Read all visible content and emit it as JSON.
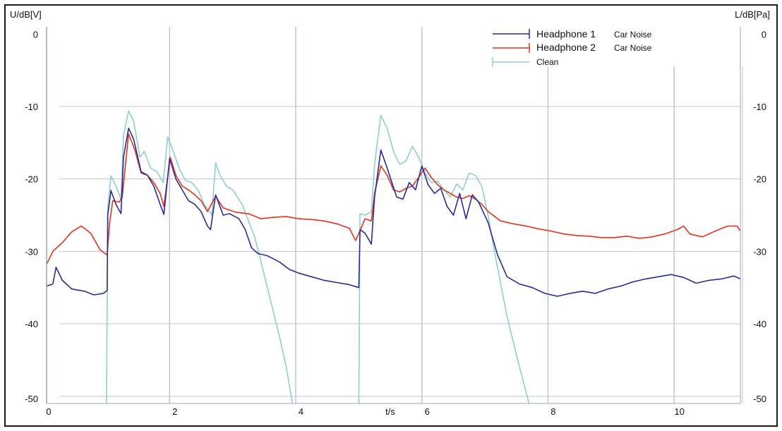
{
  "chart_data": {
    "type": "line",
    "title": "",
    "ylabel_left": "U/dB[V]",
    "ylabel_right": "L/dB[Pa]",
    "xlabel": "t/s",
    "xlim": [
      0,
      11
    ],
    "ylim": [
      -51,
      1
    ],
    "x_ticks": [
      "0",
      "2",
      "4",
      "6",
      "8",
      "10"
    ],
    "y_ticks_left": [
      "0",
      "-10",
      "-20",
      "-30",
      "-40",
      "-50"
    ],
    "y_ticks_right": [
      "0",
      "-10",
      "-20",
      "-30",
      "-40",
      "-50"
    ],
    "grid": true,
    "legend": "top-right",
    "series": [
      {
        "name": "Headphone 1",
        "name_suffix": "Car Noise",
        "color": "#2a2a9c",
        "points": [
          [
            0,
            -34.8
          ],
          [
            0.1,
            -34.5
          ],
          [
            0.15,
            -32.2
          ],
          [
            0.25,
            -34
          ],
          [
            0.4,
            -35.2
          ],
          [
            0.6,
            -35.5
          ],
          [
            0.75,
            -36
          ],
          [
            0.9,
            -35.8
          ],
          [
            0.96,
            -35.4
          ],
          [
            0.97,
            -25
          ],
          [
            1.02,
            -21.6
          ],
          [
            1.1,
            -23.5
          ],
          [
            1.18,
            -24.8
          ],
          [
            1.22,
            -17
          ],
          [
            1.3,
            -13
          ],
          [
            1.38,
            -14.5
          ],
          [
            1.5,
            -19
          ],
          [
            1.6,
            -19.5
          ],
          [
            1.7,
            -21
          ],
          [
            1.8,
            -23.5
          ],
          [
            1.86,
            -24.9
          ],
          [
            1.95,
            -17.2
          ],
          [
            2.05,
            -20
          ],
          [
            2.15,
            -21.5
          ],
          [
            2.25,
            -23
          ],
          [
            2.35,
            -23.5
          ],
          [
            2.45,
            -24.5
          ],
          [
            2.55,
            -26.5
          ],
          [
            2.6,
            -27
          ],
          [
            2.68,
            -22.2
          ],
          [
            2.8,
            -25
          ],
          [
            2.9,
            -24.8
          ],
          [
            3.05,
            -25.5
          ],
          [
            3.15,
            -27
          ],
          [
            3.25,
            -29.5
          ],
          [
            3.35,
            -30.3
          ],
          [
            3.5,
            -30.6
          ],
          [
            3.7,
            -31.5
          ],
          [
            3.85,
            -32.5
          ],
          [
            4.0,
            -33
          ],
          [
            4.2,
            -33.5
          ],
          [
            4.4,
            -34
          ],
          [
            4.6,
            -34.3
          ],
          [
            4.8,
            -34.6
          ],
          [
            4.95,
            -35
          ],
          [
            4.97,
            -27
          ],
          [
            5.05,
            -27.5
          ],
          [
            5.15,
            -29
          ],
          [
            5.2,
            -22.5
          ],
          [
            5.3,
            -16
          ],
          [
            5.4,
            -18.5
          ],
          [
            5.55,
            -22.5
          ],
          [
            5.65,
            -22.8
          ],
          [
            5.75,
            -20.5
          ],
          [
            5.85,
            -21.5
          ],
          [
            5.95,
            -18.2
          ],
          [
            6.05,
            -20.8
          ],
          [
            6.15,
            -22
          ],
          [
            6.25,
            -21.3
          ],
          [
            6.35,
            -23.8
          ],
          [
            6.45,
            -25
          ],
          [
            6.55,
            -22
          ],
          [
            6.65,
            -25.5
          ],
          [
            6.75,
            -22.2
          ],
          [
            6.85,
            -23.2
          ],
          [
            7.0,
            -26
          ],
          [
            7.15,
            -30.5
          ],
          [
            7.3,
            -33.5
          ],
          [
            7.5,
            -34.5
          ],
          [
            7.7,
            -35
          ],
          [
            7.9,
            -35.8
          ],
          [
            8.1,
            -36.2
          ],
          [
            8.3,
            -35.8
          ],
          [
            8.5,
            -35.5
          ],
          [
            8.7,
            -35.8
          ],
          [
            8.9,
            -35.2
          ],
          [
            9.1,
            -34.8
          ],
          [
            9.3,
            -34.2
          ],
          [
            9.5,
            -33.8
          ],
          [
            9.7,
            -33.5
          ],
          [
            9.9,
            -33.2
          ],
          [
            10.1,
            -33.6
          ],
          [
            10.3,
            -34.4
          ],
          [
            10.5,
            -34
          ],
          [
            10.7,
            -33.8
          ],
          [
            10.9,
            -33.4
          ],
          [
            11.0,
            -33.8
          ]
        ]
      },
      {
        "name": "Headphone 2",
        "name_suffix": "Car Noise",
        "color": "#e4321b",
        "points": [
          [
            0,
            -31.8
          ],
          [
            0.1,
            -30
          ],
          [
            0.25,
            -28.8
          ],
          [
            0.4,
            -27.3
          ],
          [
            0.55,
            -26.5
          ],
          [
            0.7,
            -27.5
          ],
          [
            0.85,
            -29.8
          ],
          [
            0.96,
            -30.5
          ],
          [
            1.0,
            -26
          ],
          [
            1.05,
            -23
          ],
          [
            1.15,
            -23.2
          ],
          [
            1.2,
            -22.5
          ],
          [
            1.3,
            -13.8
          ],
          [
            1.4,
            -16
          ],
          [
            1.5,
            -19.2
          ],
          [
            1.6,
            -19.5
          ],
          [
            1.7,
            -20.5
          ],
          [
            1.8,
            -22
          ],
          [
            1.86,
            -23.8
          ],
          [
            1.96,
            -17
          ],
          [
            2.05,
            -19.5
          ],
          [
            2.15,
            -21
          ],
          [
            2.25,
            -21.5
          ],
          [
            2.35,
            -22.2
          ],
          [
            2.45,
            -23
          ],
          [
            2.55,
            -24.5
          ],
          [
            2.68,
            -22.4
          ],
          [
            2.8,
            -24
          ],
          [
            3.0,
            -24.6
          ],
          [
            3.2,
            -24.8
          ],
          [
            3.4,
            -25.5
          ],
          [
            3.6,
            -25.3
          ],
          [
            3.8,
            -25.2
          ],
          [
            4.0,
            -25.5
          ],
          [
            4.2,
            -25.6
          ],
          [
            4.4,
            -25.8
          ],
          [
            4.6,
            -26.2
          ],
          [
            4.8,
            -26.8
          ],
          [
            4.9,
            -28.5
          ],
          [
            4.95,
            -27.5
          ],
          [
            5.05,
            -25.5
          ],
          [
            5.15,
            -25.8
          ],
          [
            5.2,
            -22
          ],
          [
            5.3,
            -18.2
          ],
          [
            5.4,
            -19.5
          ],
          [
            5.5,
            -21.5
          ],
          [
            5.6,
            -21.8
          ],
          [
            5.7,
            -21.3
          ],
          [
            5.8,
            -21
          ],
          [
            5.9,
            -19.8
          ],
          [
            6.0,
            -18.5
          ],
          [
            6.1,
            -19.8
          ],
          [
            6.2,
            -20.8
          ],
          [
            6.3,
            -21.5
          ],
          [
            6.4,
            -22
          ],
          [
            6.5,
            -22.5
          ],
          [
            6.6,
            -22.7
          ],
          [
            6.7,
            -22.3
          ],
          [
            6.8,
            -22.8
          ],
          [
            6.9,
            -23.5
          ],
          [
            7.0,
            -24.5
          ],
          [
            7.2,
            -25.8
          ],
          [
            7.4,
            -26.2
          ],
          [
            7.6,
            -26.5
          ],
          [
            7.8,
            -26.9
          ],
          [
            8.0,
            -27.2
          ],
          [
            8.2,
            -27.6
          ],
          [
            8.4,
            -27.8
          ],
          [
            8.6,
            -27.9
          ],
          [
            8.8,
            -28.1
          ],
          [
            9.0,
            -28.1
          ],
          [
            9.2,
            -27.9
          ],
          [
            9.4,
            -28.2
          ],
          [
            9.6,
            -28
          ],
          [
            9.8,
            -27.6
          ],
          [
            10.0,
            -27
          ],
          [
            10.1,
            -26.5
          ],
          [
            10.2,
            -27.6
          ],
          [
            10.4,
            -28
          ],
          [
            10.6,
            -27.2
          ],
          [
            10.8,
            -26.5
          ],
          [
            10.95,
            -26.5
          ],
          [
            11.0,
            -27.2
          ]
        ]
      },
      {
        "name": "Clean",
        "color": "#8dcfd0",
        "points": [
          [
            0.94,
            -51
          ],
          [
            0.95,
            -51
          ],
          [
            0.97,
            -24
          ],
          [
            1.02,
            -19.6
          ],
          [
            1.1,
            -21
          ],
          [
            1.18,
            -22.8
          ],
          [
            1.22,
            -14
          ],
          [
            1.3,
            -10.6
          ],
          [
            1.38,
            -12
          ],
          [
            1.48,
            -17
          ],
          [
            1.55,
            -16.2
          ],
          [
            1.65,
            -18.5
          ],
          [
            1.75,
            -19
          ],
          [
            1.85,
            -20.5
          ],
          [
            1.92,
            -14.2
          ],
          [
            2.0,
            -16
          ],
          [
            2.1,
            -18.5
          ],
          [
            2.2,
            -20.2
          ],
          [
            2.3,
            -20.5
          ],
          [
            2.4,
            -21.5
          ],
          [
            2.5,
            -23.5
          ],
          [
            2.62,
            -25
          ],
          [
            2.68,
            -17.8
          ],
          [
            2.75,
            -19.5
          ],
          [
            2.85,
            -21
          ],
          [
            2.95,
            -21.5
          ],
          [
            3.1,
            -23.5
          ],
          [
            3.3,
            -28
          ],
          [
            3.5,
            -35
          ],
          [
            3.7,
            -42
          ],
          [
            3.8,
            -46
          ],
          [
            3.9,
            -51
          ]
        ],
        "points_b": [
          [
            4.94,
            -51
          ],
          [
            4.95,
            -51
          ],
          [
            4.97,
            -24.8
          ],
          [
            5.05,
            -25
          ],
          [
            5.15,
            -24.5
          ],
          [
            5.2,
            -18
          ],
          [
            5.3,
            -11.2
          ],
          [
            5.4,
            -13
          ],
          [
            5.5,
            -16.2
          ],
          [
            5.6,
            -18
          ],
          [
            5.7,
            -17.5
          ],
          [
            5.8,
            -15.5
          ],
          [
            5.9,
            -17
          ],
          [
            6.0,
            -19.2
          ],
          [
            6.1,
            -20.5
          ],
          [
            6.2,
            -20.3
          ],
          [
            6.3,
            -21.5
          ],
          [
            6.4,
            -22.5
          ],
          [
            6.5,
            -20.7
          ],
          [
            6.6,
            -21.5
          ],
          [
            6.7,
            -19.2
          ],
          [
            6.8,
            -19.5
          ],
          [
            6.9,
            -21
          ],
          [
            7.0,
            -25
          ],
          [
            7.1,
            -30
          ],
          [
            7.3,
            -39
          ],
          [
            7.5,
            -46
          ],
          [
            7.65,
            -51
          ]
        ]
      }
    ],
    "vertical_markers": [
      1.95,
      3.95,
      5.95,
      7.95,
      9.95
    ]
  }
}
